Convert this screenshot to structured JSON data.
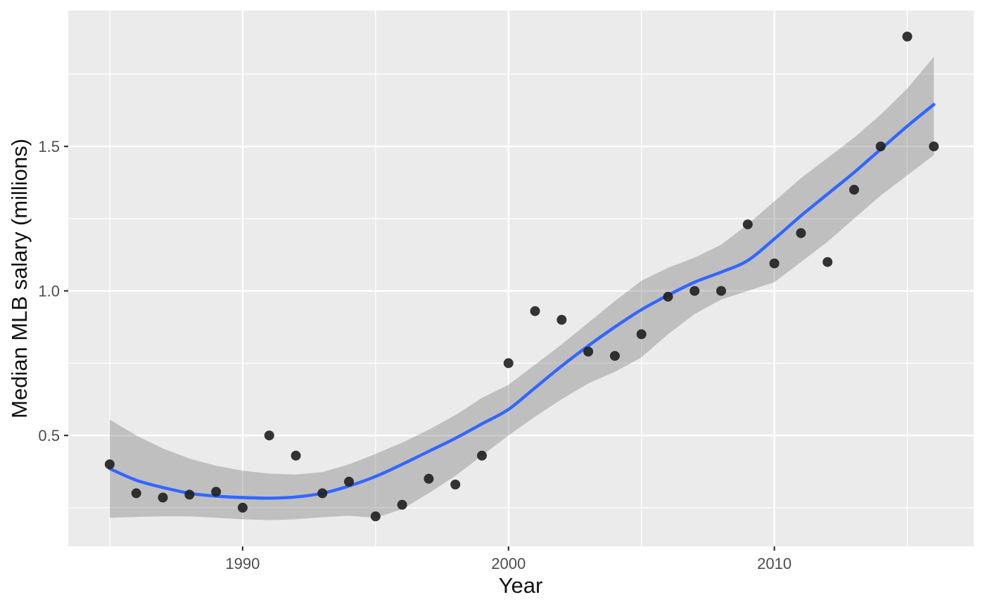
{
  "figure": {
    "xlabel": "Year",
    "ylabel": "Median MLB salary (millions)"
  },
  "chart_data": {
    "type": "scatter",
    "description": "Scatter plot of median MLB salary by year with loess smooth line and confidence ribbon (ggplot2 style)",
    "xlabel": "Year",
    "ylabel": "Median MLB salary (millions)",
    "x": [
      1985,
      1986,
      1987,
      1988,
      1989,
      1990,
      1991,
      1992,
      1993,
      1994,
      1995,
      1996,
      1997,
      1998,
      1999,
      2000,
      2001,
      2002,
      2003,
      2004,
      2005,
      2006,
      2007,
      2008,
      2009,
      2010,
      2011,
      2012,
      2013,
      2014,
      2015,
      2016
    ],
    "series": [
      {
        "name": "points",
        "values": [
          0.4,
          0.3,
          0.285,
          0.295,
          0.305,
          0.25,
          0.5,
          0.43,
          0.3,
          0.34,
          0.22,
          0.26,
          0.35,
          0.33,
          0.43,
          0.75,
          0.93,
          0.9,
          0.79,
          0.775,
          0.85,
          0.98,
          1.0,
          1.0,
          1.23,
          1.095,
          1.2,
          1.1,
          1.35,
          1.5,
          1.88,
          1.5
        ]
      },
      {
        "name": "loess_smooth",
        "values": [
          0.385,
          0.345,
          0.32,
          0.3,
          0.29,
          0.285,
          0.283,
          0.287,
          0.3,
          0.325,
          0.358,
          0.4,
          0.445,
          0.49,
          0.54,
          0.59,
          0.665,
          0.74,
          0.81,
          0.875,
          0.935,
          0.985,
          1.03,
          1.065,
          1.105,
          1.18,
          1.26,
          1.335,
          1.41,
          1.49,
          1.57,
          1.645
        ]
      },
      {
        "name": "ribbon_lower",
        "values": [
          0.215,
          0.218,
          0.22,
          0.22,
          0.215,
          0.21,
          0.207,
          0.21,
          0.217,
          0.222,
          0.215,
          0.245,
          0.3,
          0.36,
          0.43,
          0.5,
          0.565,
          0.625,
          0.68,
          0.72,
          0.77,
          0.85,
          0.92,
          0.97,
          1.0,
          1.03,
          1.1,
          1.17,
          1.25,
          1.33,
          1.4,
          1.47
        ]
      },
      {
        "name": "ribbon_upper",
        "values": [
          0.555,
          0.5,
          0.455,
          0.42,
          0.395,
          0.378,
          0.368,
          0.365,
          0.373,
          0.4,
          0.436,
          0.475,
          0.52,
          0.57,
          0.63,
          0.675,
          0.745,
          0.815,
          0.89,
          0.965,
          1.035,
          1.08,
          1.115,
          1.16,
          1.23,
          1.31,
          1.39,
          1.46,
          1.53,
          1.61,
          1.7,
          1.81
        ]
      }
    ],
    "x_ticks": [
      1990,
      2000,
      2010
    ],
    "x_tick_labels": [
      "1990",
      "2000",
      "2010"
    ],
    "x_minor_ticks": [
      1985,
      1995,
      2005,
      2015
    ],
    "y_ticks": [
      0.5,
      1.0,
      1.5
    ],
    "y_tick_labels": [
      "0.5",
      "1.0",
      "1.5"
    ],
    "y_minor_ticks": [
      0.25,
      0.75,
      1.25,
      1.75
    ],
    "x_range": [
      1983.44,
      2017.5
    ],
    "y_range": [
      0.116,
      1.97
    ],
    "grid": true,
    "legend": false,
    "colors": {
      "panel_background": "#EBEBEB",
      "gridline": "#FFFFFF",
      "ribbon": "rgba(121,121,121,0.38)",
      "smooth_line": "#3366FF",
      "point": "#1F1F1F",
      "axis_text": "#4D4D4D",
      "axis_title": "#111111",
      "tick_mark": "#333333"
    }
  }
}
